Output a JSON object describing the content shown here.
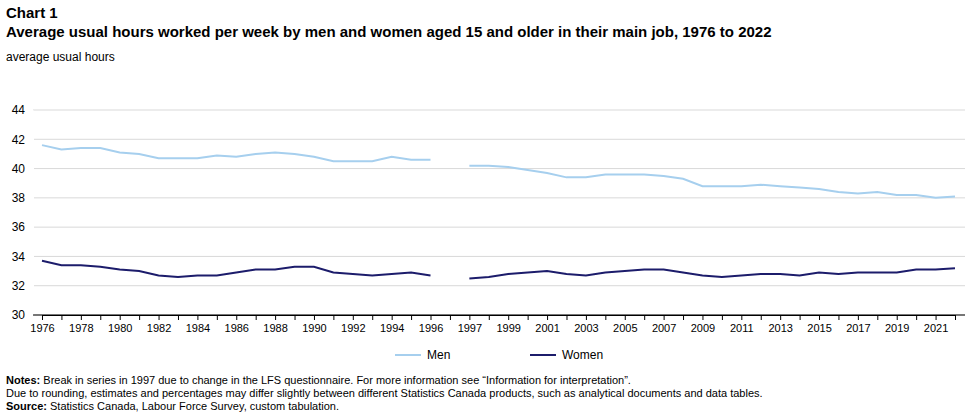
{
  "chart_data": {
    "type": "line",
    "title": "Chart 1",
    "subtitle": "Average usual hours worked per week by men and women aged 15 and older in their main job, 1976 to 2022",
    "y_label": "average usual hours",
    "categories": [
      "1976",
      null,
      "1978",
      null,
      "1980",
      null,
      "1982",
      null,
      "1984",
      null,
      "1986",
      null,
      "1988",
      null,
      "1990",
      null,
      "1992",
      null,
      "1994",
      null,
      "1996",
      null,
      "1997",
      null,
      "1999",
      null,
      "2001",
      null,
      "2003",
      null,
      "2005",
      null,
      "2007",
      null,
      "2009",
      null,
      "2011",
      null,
      "2013",
      null,
      "2015",
      null,
      "2017",
      null,
      "2019",
      null,
      "2021",
      null
    ],
    "series": [
      {
        "name": "Men",
        "color": "#a6cfee",
        "values": [
          41.6,
          41.3,
          41.4,
          41.4,
          41.1,
          41.0,
          40.7,
          40.7,
          40.7,
          40.9,
          40.8,
          41.0,
          41.1,
          41.0,
          40.8,
          40.5,
          40.5,
          40.5,
          40.8,
          40.6,
          40.6,
          null,
          40.2,
          40.2,
          40.1,
          39.9,
          39.7,
          39.4,
          39.4,
          39.6,
          39.6,
          39.6,
          39.5,
          39.3,
          38.8,
          38.8,
          38.8,
          38.9,
          38.8,
          38.7,
          38.6,
          38.4,
          38.3,
          38.4,
          38.2,
          38.2,
          38.0,
          38.1
        ]
      },
      {
        "name": "Women",
        "color": "#1c1c6b",
        "values": [
          33.7,
          33.4,
          33.4,
          33.3,
          33.1,
          33.0,
          32.7,
          32.6,
          32.7,
          32.7,
          32.9,
          33.1,
          33.1,
          33.3,
          33.3,
          32.9,
          32.8,
          32.7,
          32.8,
          32.9,
          32.7,
          null,
          32.5,
          32.6,
          32.8,
          32.9,
          33.0,
          32.8,
          32.7,
          32.9,
          33.0,
          33.1,
          33.1,
          32.9,
          32.7,
          32.6,
          32.7,
          32.8,
          32.8,
          32.7,
          32.9,
          32.8,
          32.9,
          32.9,
          32.9,
          33.1,
          33.1,
          33.2
        ]
      }
    ],
    "ylim": [
      30,
      44
    ],
    "yticks": [
      30,
      32,
      34,
      36,
      38,
      40,
      42,
      44
    ],
    "grid": true,
    "legend": "bottom",
    "notes_label": "Notes:",
    "notes": [
      "Break in series in 1997 due to change in the LFS questionnaire. For more information see “Information for interpretation”.",
      "Due to rounding, estimates and percentages may differ slightly between different Statistics Canada products, such as analytical documents and data tables."
    ],
    "source_label": "Source:",
    "source": "Statistics Canada, Labour Force Survey, custom tabulation."
  }
}
